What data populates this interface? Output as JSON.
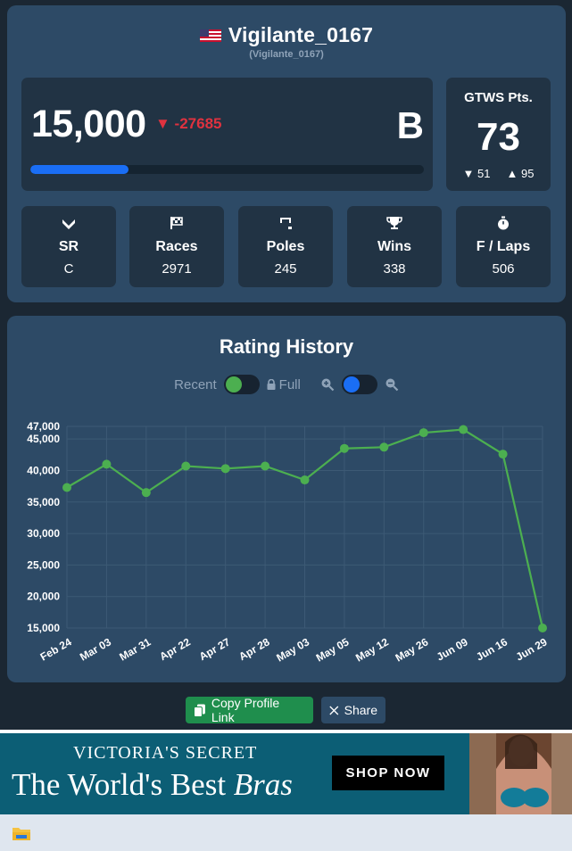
{
  "profile": {
    "name": "Vigilante_0167",
    "subname": "(Vigilante_0167)",
    "rating": "15,000",
    "rating_delta": "▼ -27685",
    "grade": "B",
    "progress_fraction": 0.25,
    "gtws": {
      "title": "GTWS Pts.",
      "value": "73",
      "down": "▼ 51",
      "up": "▲ 95"
    },
    "stats": [
      {
        "label": "SR",
        "value": "C",
        "icon": "sr-chevron-icon"
      },
      {
        "label": "Races",
        "value": "2971",
        "icon": "checkered-flag-icon"
      },
      {
        "label": "Poles",
        "value": "245",
        "icon": "pole-icon"
      },
      {
        "label": "Wins",
        "value": "338",
        "icon": "trophy-icon"
      },
      {
        "label": "F / Laps",
        "value": "506",
        "icon": "stopwatch-icon"
      }
    ]
  },
  "history": {
    "title": "Rating History",
    "recent_label": "Recent",
    "full_label": "Full"
  },
  "chart_data": {
    "type": "line",
    "title": "Rating History",
    "xlabel": "",
    "ylabel": "",
    "x": [
      "Feb 24",
      "Mar 03",
      "Mar 31",
      "Apr 22",
      "Apr 27",
      "Apr 28",
      "May 03",
      "May 05",
      "May 12",
      "May 26",
      "Jun 09",
      "Jun 16",
      "Jun 29"
    ],
    "series": [
      {
        "values": [
          37300,
          41000,
          36500,
          40700,
          40300,
          40700,
          38500,
          43500,
          43700,
          46000,
          46500,
          42600,
          15000
        ]
      }
    ],
    "ylim": [
      15000,
      47000
    ],
    "yticks": [
      15000,
      20000,
      25000,
      30000,
      35000,
      40000,
      45000,
      47000
    ],
    "ytick_labels": [
      "15,000",
      "20,000",
      "25,000",
      "30,000",
      "35,000",
      "40,000",
      "45,000",
      "47,000"
    ],
    "grid": true,
    "colors": {
      "line": "#4caf50",
      "grid": "#3d5a75"
    }
  },
  "actions": {
    "copy_label": "Copy Profile Link",
    "share_label": "Share"
  },
  "ad": {
    "brand": "VICTORIA'S SECRET",
    "headline_1": "The World's Best ",
    "headline_2": "Bras",
    "cta": "SHOP NOW"
  },
  "colors": {
    "card": "#2d4a66",
    "page": "#1b2733",
    "accent": "#1a6ef5",
    "negative": "#e0323f",
    "green": "#1f8e4d"
  }
}
